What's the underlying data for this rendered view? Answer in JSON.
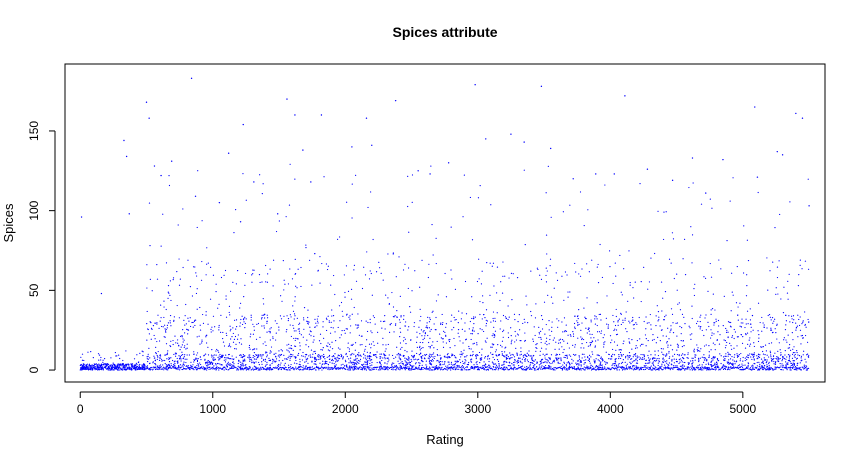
{
  "chart_data": {
    "type": "scatter",
    "title": "Spices attribute",
    "xlabel": "Rating",
    "ylabel": "Spices",
    "xlim": [
      -115,
      5620
    ],
    "ylim": [
      -7.5,
      192
    ],
    "xticks": [
      0,
      1000,
      2000,
      3000,
      4000,
      5000
    ],
    "yticks": [
      0,
      50,
      100,
      150
    ],
    "point_color": "#0000FF",
    "grid": false,
    "legend": "none",
    "series": [
      {
        "x": [
          10,
          160,
          330,
          350,
          370,
          500,
          520,
          560,
          610,
          690,
          840,
          870,
          1050,
          1120,
          1210,
          1230,
          1310,
          1490,
          1560,
          1620,
          1680,
          1740,
          1770,
          1820,
          2050,
          2160,
          2200,
          2380,
          2550,
          2640,
          2780,
          2980,
          3060,
          3250,
          3350,
          3480,
          3550,
          3720,
          3890,
          4030,
          4110,
          4280,
          4470,
          4620,
          4720,
          4850,
          5090,
          5110,
          5260,
          5300,
          5400,
          5450,
          5500
        ],
        "y": [
          96,
          48,
          144,
          134,
          98,
          168,
          158,
          128,
          122,
          131,
          183,
          109,
          105,
          136,
          93,
          154,
          118,
          98,
          170,
          160,
          138,
          118,
          73,
          160,
          140,
          158,
          141,
          169,
          125,
          123,
          130,
          179,
          145,
          148,
          143,
          178,
          139,
          120,
          123,
          123,
          172,
          126,
          119,
          133,
          111,
          132,
          165,
          121,
          137,
          135,
          161,
          158,
          103
        ]
      }
    ]
  }
}
